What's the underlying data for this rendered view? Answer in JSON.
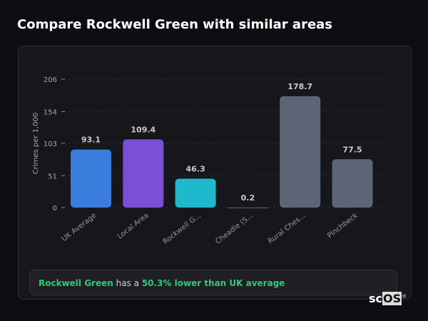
{
  "title": "Compare Rockwell Green with similar areas",
  "chart_data": {
    "type": "bar",
    "categories": [
      "UK Average",
      "Local Area",
      "Rockwell G...",
      "Cheadle (S...",
      "Rural Ches...",
      "Pinchbeck"
    ],
    "values": [
      93.1,
      109.4,
      46.3,
      0.2,
      178.7,
      77.5
    ],
    "colors": [
      "#3b7ddd",
      "#7b4fd6",
      "#1fb8cd",
      "#5c6577",
      "#5c6577",
      "#5c6577"
    ],
    "ylabel": "Crimes per 1,000",
    "yticks": [
      0,
      51,
      103,
      154,
      206
    ],
    "ylim": [
      0,
      206
    ],
    "grid": true
  },
  "summary": {
    "area": "Rockwell Green",
    "middle": " has a ",
    "comparison": "50.3% lower than UK average"
  },
  "logo": {
    "main": "sc",
    "box": "OS",
    "mark": "®"
  }
}
